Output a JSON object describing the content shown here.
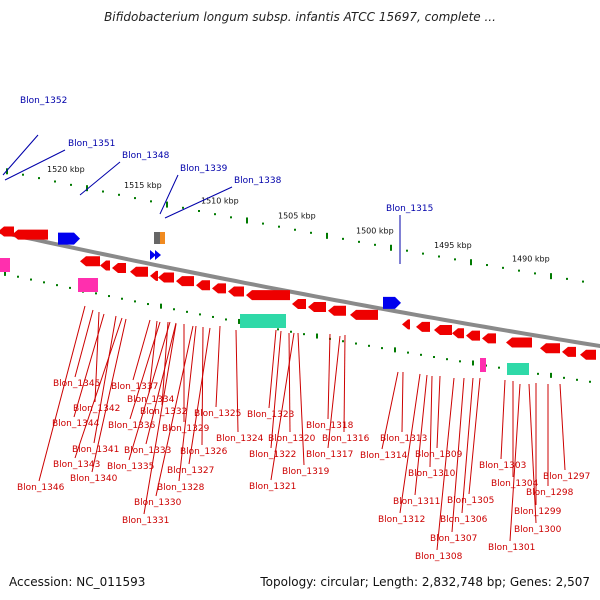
{
  "title": "Bifidobacterium longum subsp. infantis ATCC 15697, complete ...",
  "footer": {
    "accession": "Accession: NC_011593",
    "topology": "Topology: circular; Length: 2,832,748 bp; Genes: 2,507"
  },
  "colors": {
    "forward_gene": "#0000ee",
    "reverse_gene": "#ee0000",
    "backbone": "#8a8a8a",
    "tick": "#007a00",
    "label_forward": "#0000aa",
    "label_reverse": "#cc0000",
    "rrna": "#2fd9a8",
    "trna": "#ff2fae"
  },
  "scale_labels": [
    "1520 kbp",
    "1515 kbp",
    "1510 kbp",
    "1505 kbp",
    "1500 kbp",
    "1495 kbp",
    "1490 kbp"
  ],
  "forward_gene_labels": [
    "Blon_1352",
    "Blon_1351",
    "Blon_1348",
    "Blon_1339",
    "Blon_1338",
    "Blon_1315"
  ],
  "reverse_gene_labels": [
    "Blon_1345",
    "Blon_1337",
    "Blon_1342",
    "Blon_1334",
    "Blon_1344",
    "Blon_1336",
    "Blon_1332",
    "Blon_1325",
    "Blon_1323",
    "Blon_1329",
    "Blon_1341",
    "Blon_1324",
    "Blon_1326",
    "Blon_1320",
    "Blon_1316",
    "Blon_1318",
    "Blon_1343",
    "Blon_1335",
    "Blon_1333",
    "Blon_1327",
    "Blon_1322",
    "Blon_1317",
    "Blon_1319",
    "Blon_1340",
    "Blon_1328",
    "Blon_1346",
    "Blon_1321",
    "Blon_1330",
    "Blon_1331",
    "Blon_1313",
    "Blon_1314",
    "Blon_1309",
    "Blon_1310",
    "Blon_1303",
    "Blon_1304",
    "Blon_1297",
    "Blon_1298",
    "Blon_1311",
    "Blon_1305",
    "Blon_1299",
    "Blon_1312",
    "Blon_1306",
    "Blon_1300",
    "Blon_1307",
    "Blon_1301",
    "Blon_1308"
  ]
}
